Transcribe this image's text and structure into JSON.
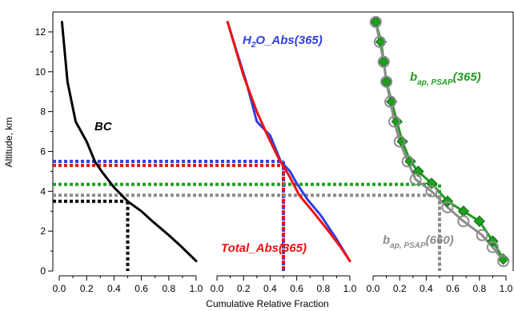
{
  "chart_data": {
    "type": "line",
    "xlabel": "Cumulative Relative Fraction",
    "ylabel": "Altitude, km",
    "ylim": [
      0,
      13
    ],
    "y_ticks": [
      "0",
      "2",
      "4",
      "6",
      "8",
      "10",
      "12"
    ],
    "x_ticks": [
      "0.0",
      "0.2",
      "0.4",
      "0.6",
      "0.8",
      "1.0"
    ],
    "grid": false,
    "panels": [
      {
        "xlim": [
          0,
          1
        ],
        "series": [
          {
            "name": "BC",
            "color": "#000000",
            "points": [
              [
                0.02,
                12.5
              ],
              [
                0.06,
                9.5
              ],
              [
                0.12,
                7.5
              ],
              [
                0.2,
                6.5
              ],
              [
                0.26,
                5.5
              ],
              [
                0.31,
                5.0
              ],
              [
                0.4,
                4.2
              ],
              [
                0.5,
                3.5
              ],
              [
                0.6,
                3.0
              ],
              [
                0.68,
                2.5
              ],
              [
                0.8,
                1.8
              ],
              [
                0.88,
                1.3
              ],
              [
                1.0,
                0.5
              ]
            ],
            "half_value": 3.5
          }
        ]
      },
      {
        "xlim": [
          0,
          1
        ],
        "series": [
          {
            "name": "H2O_Abs(365)",
            "color": "#2f3fe8",
            "points": [
              [
                0.08,
                12.5
              ],
              [
                0.14,
                11.2
              ],
              [
                0.22,
                9.5
              ],
              [
                0.3,
                7.5
              ],
              [
                0.4,
                6.8
              ],
              [
                0.48,
                5.5
              ],
              [
                0.55,
                5.0
              ],
              [
                0.6,
                4.4
              ],
              [
                0.68,
                3.6
              ],
              [
                0.78,
                2.8
              ],
              [
                0.9,
                1.6
              ],
              [
                1.0,
                0.5
              ]
            ],
            "half_value": 5.5
          },
          {
            "name": "Total_Abs(365)",
            "color": "#ee1111",
            "points": [
              [
                0.08,
                12.5
              ],
              [
                0.12,
                11.6
              ],
              [
                0.2,
                9.8
              ],
              [
                0.3,
                8.0
              ],
              [
                0.38,
                6.8
              ],
              [
                0.46,
                5.7
              ],
              [
                0.55,
                4.7
              ],
              [
                0.62,
                3.8
              ],
              [
                0.72,
                3.0
              ],
              [
                0.84,
                2.0
              ],
              [
                0.93,
                1.2
              ],
              [
                1.0,
                0.5
              ]
            ],
            "half_value": 5.3
          }
        ]
      },
      {
        "xlim": [
          0,
          1
        ],
        "series": [
          {
            "name": "b_ap, PSAP(365)",
            "label_main": "b",
            "label_sub": "ap, PSAP",
            "label_rest": "(365)",
            "color": "#1f9e1f",
            "marker": "diamond",
            "points": [
              [
                0.02,
                12.5
              ],
              [
                0.06,
                11.5
              ],
              [
                0.08,
                10.5
              ],
              [
                0.1,
                9.5
              ],
              [
                0.14,
                8.5
              ],
              [
                0.18,
                7.5
              ],
              [
                0.22,
                6.5
              ],
              [
                0.28,
                5.5
              ],
              [
                0.34,
                5.0
              ],
              [
                0.44,
                4.4
              ],
              [
                0.56,
                3.5
              ],
              [
                0.68,
                3.0
              ],
              [
                0.8,
                2.5
              ],
              [
                0.9,
                1.5
              ],
              [
                0.98,
                0.6
              ]
            ],
            "half_value": 4.35
          },
          {
            "name": "b_ap, PSAP(660)",
            "label_main": "b",
            "label_sub": "ap, PSAP",
            "label_rest": "(660)",
            "color": "#8c8c8c",
            "marker": "circle",
            "points": [
              [
                0.02,
                12.5
              ],
              [
                0.05,
                11.5
              ],
              [
                0.08,
                10.5
              ],
              [
                0.1,
                9.5
              ],
              [
                0.13,
                8.5
              ],
              [
                0.16,
                7.5
              ],
              [
                0.2,
                6.5
              ],
              [
                0.26,
                5.5
              ],
              [
                0.32,
                4.6
              ],
              [
                0.44,
                4.0
              ],
              [
                0.56,
                3.2
              ],
              [
                0.68,
                2.5
              ],
              [
                0.82,
                1.8
              ],
              [
                0.9,
                1.2
              ],
              [
                0.98,
                0.5
              ]
            ],
            "half_value": 3.8
          }
        ]
      }
    ]
  }
}
